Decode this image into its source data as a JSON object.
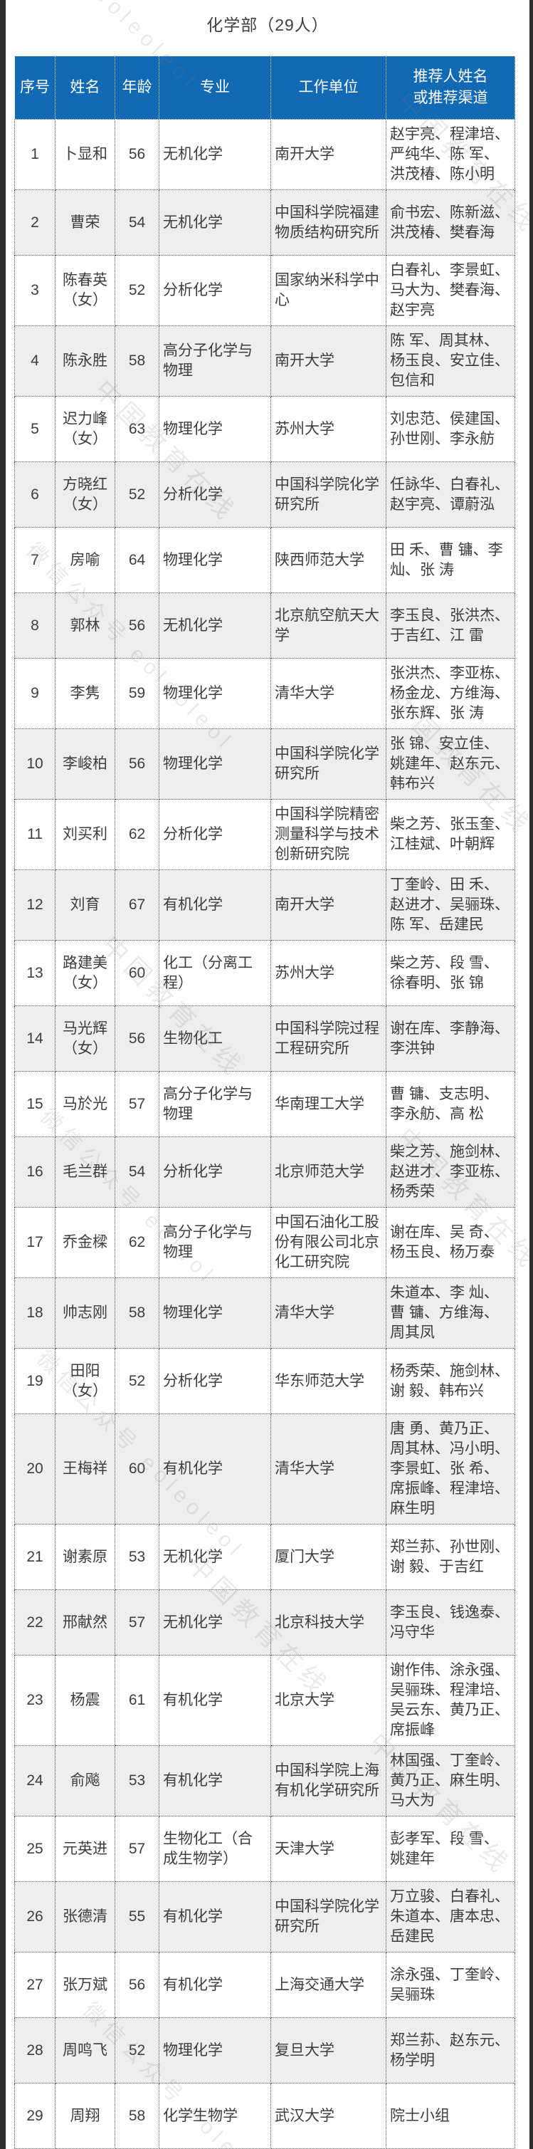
{
  "page": {
    "title": "化学部（29人）"
  },
  "table": {
    "headers": [
      "序号",
      "姓名",
      "年龄",
      "专业",
      "工作单位",
      "推荐人姓名或推荐渠道"
    ],
    "rows": [
      {
        "no": "1",
        "name": "卜显和",
        "age": "56",
        "major": "无机化学",
        "org": "南开大学",
        "recommenders": "赵宇亮、程津培、严纯华、陈 军、洪茂椿、陈小明"
      },
      {
        "no": "2",
        "name": "曹荣",
        "age": "54",
        "major": "无机化学",
        "org": "中国科学院福建物质结构研究所",
        "recommenders": "俞书宏、陈新滋、洪茂椿、樊春海"
      },
      {
        "no": "3",
        "name": "陈春英（女）",
        "age": "52",
        "major": "分析化学",
        "org": "国家纳米科学中心",
        "recommenders": "白春礼、李景虹、马大为、樊春海、赵宇亮"
      },
      {
        "no": "4",
        "name": "陈永胜",
        "age": "58",
        "major": "高分子化学与物理",
        "org": "南开大学",
        "recommenders": "陈 军、周其林、杨玉良、安立佳、包信和"
      },
      {
        "no": "5",
        "name": "迟力峰（女）",
        "age": "63",
        "major": "物理化学",
        "org": "苏州大学",
        "recommenders": "刘忠范、侯建国、孙世刚、李永舫"
      },
      {
        "no": "6",
        "name": "方晓红（女）",
        "age": "52",
        "major": "分析化学",
        "org": "中国科学院化学研究所",
        "recommenders": "任詠华、白春礼、赵宇亮、谭蔚泓"
      },
      {
        "no": "7",
        "name": "房喻",
        "age": "64",
        "major": "物理化学",
        "org": "陕西师范大学",
        "recommenders": "田 禾、曹 镛、李 灿、张 涛"
      },
      {
        "no": "8",
        "name": "郭林",
        "age": "56",
        "major": "无机化学",
        "org": "北京航空航天大学",
        "recommenders": "李玉良、张洪杰、于吉红、江 雷"
      },
      {
        "no": "9",
        "name": "李隽",
        "age": "59",
        "major": "物理化学",
        "org": "清华大学",
        "recommenders": "张洪杰、李亚栋、杨金龙、方维海、张东辉、张 涛"
      },
      {
        "no": "10",
        "name": "李峻柏",
        "age": "56",
        "major": "物理化学",
        "org": "中国科学院化学研究所",
        "recommenders": "张 锦、安立佳、姚建年、赵东元、韩布兴"
      },
      {
        "no": "11",
        "name": "刘买利",
        "age": "62",
        "major": "分析化学",
        "org": "中国科学院精密测量科学与技术创新研究院",
        "recommenders": "柴之芳、张玉奎、江桂斌、叶朝辉"
      },
      {
        "no": "12",
        "name": "刘育",
        "age": "67",
        "major": "有机化学",
        "org": "南开大学",
        "recommenders": "丁奎岭、田 禾、赵进才、吴骊珠、陈 军、岳建民"
      },
      {
        "no": "13",
        "name": "路建美（女）",
        "age": "60",
        "major": "化工（分离工程）",
        "org": "苏州大学",
        "recommenders": "柴之芳、段 雪、徐春明、张 锦"
      },
      {
        "no": "14",
        "name": "马光辉（女）",
        "age": "56",
        "major": "生物化工",
        "org": "中国科学院过程工程研究所",
        "recommenders": "谢在库、李静海、李洪钟"
      },
      {
        "no": "15",
        "name": "马於光",
        "age": "57",
        "major": "高分子化学与物理",
        "org": "华南理工大学",
        "recommenders": "曹 镛、支志明、李永舫、高 松"
      },
      {
        "no": "16",
        "name": "毛兰群",
        "age": "54",
        "major": "分析化学",
        "org": "北京师范大学",
        "recommenders": "柴之芳、施剑林、赵进才、李亚栋、杨秀荣"
      },
      {
        "no": "17",
        "name": "乔金樑",
        "age": "62",
        "major": "高分子化学与物理",
        "org": "中国石油化工股份有限公司北京化工研究院",
        "recommenders": "谢在库、吴 奇、杨玉良、杨万泰"
      },
      {
        "no": "18",
        "name": "帅志刚",
        "age": "58",
        "major": "物理化学",
        "org": "清华大学",
        "recommenders": "朱道本、李 灿、曹 镛、方维海、周其凤"
      },
      {
        "no": "19",
        "name": "田阳（女）",
        "age": "52",
        "major": "分析化学",
        "org": "华东师范大学",
        "recommenders": "杨秀荣、施剑林、谢 毅、韩布兴"
      },
      {
        "no": "20",
        "name": "王梅祥",
        "age": "60",
        "major": "有机化学",
        "org": "清华大学",
        "recommenders": "唐 勇、黄乃正、周其林、冯小明、李景虹、张 希、席振峰、程津培、麻生明"
      },
      {
        "no": "21",
        "name": "谢素原",
        "age": "53",
        "major": "无机化学",
        "org": "厦门大学",
        "recommenders": "郑兰荪、孙世刚、谢 毅、于吉红"
      },
      {
        "no": "22",
        "name": "邢献然",
        "age": "57",
        "major": "无机化学",
        "org": "北京科技大学",
        "recommenders": "李玉良、钱逸泰、冯守华"
      },
      {
        "no": "23",
        "name": "杨震",
        "age": "61",
        "major": "有机化学",
        "org": "北京大学",
        "recommenders": "谢作伟、涂永强、吴骊珠、程津培、吴云东、黄乃正、席振峰"
      },
      {
        "no": "24",
        "name": "俞飚",
        "age": "53",
        "major": "有机化学",
        "org": "中国科学院上海有机化学研究所",
        "recommenders": "林国强、丁奎岭、黄乃正、麻生明、马大为"
      },
      {
        "no": "25",
        "name": "元英进",
        "age": "57",
        "major": "生物化工（合成生物学）",
        "org": "天津大学",
        "recommenders": "彭孝军、段 雪、姚建年"
      },
      {
        "no": "26",
        "name": "张德清",
        "age": "55",
        "major": "有机化学",
        "org": "中国科学院化学研究所",
        "recommenders": "万立骏、白春礼、朱道本、唐本忠、岳建民"
      },
      {
        "no": "27",
        "name": "张万斌",
        "age": "56",
        "major": "有机化学",
        "org": "上海交通大学",
        "recommenders": "涂永强、丁奎岭、吴骊珠"
      },
      {
        "no": "28",
        "name": "周鸣飞",
        "age": "52",
        "major": "物理化学",
        "org": "复旦大学",
        "recommenders": "郑兰荪、赵东元、杨学明"
      },
      {
        "no": "29",
        "name": "周翔",
        "age": "58",
        "major": "化学生物学",
        "org": "武汉大学",
        "recommenders": "院士小组"
      }
    ]
  },
  "watermarks": [
    {
      "text": "eoleoleol"
    },
    {
      "text": "中国教育在线"
    },
    {
      "text": "中国教育在线"
    },
    {
      "text": "微信公众号 eoleoleol"
    },
    {
      "text": "中国教育在线"
    },
    {
      "text": "中国教育在线"
    },
    {
      "text": "微信公众号 eoleol"
    },
    {
      "text": "中国教育在线"
    },
    {
      "text": "微信公众号 eoleoleol"
    },
    {
      "text": "中国教育在线"
    },
    {
      "text": "中国教育在线"
    },
    {
      "text": "微信公众号 eoleol"
    }
  ],
  "colors": {
    "header_bg": "#1269b4",
    "header_text": "#ffffff",
    "row_alt_bg": "#eeeeee",
    "body_text": "#3d3d3d",
    "edge_bar": "#2d2d2d"
  }
}
